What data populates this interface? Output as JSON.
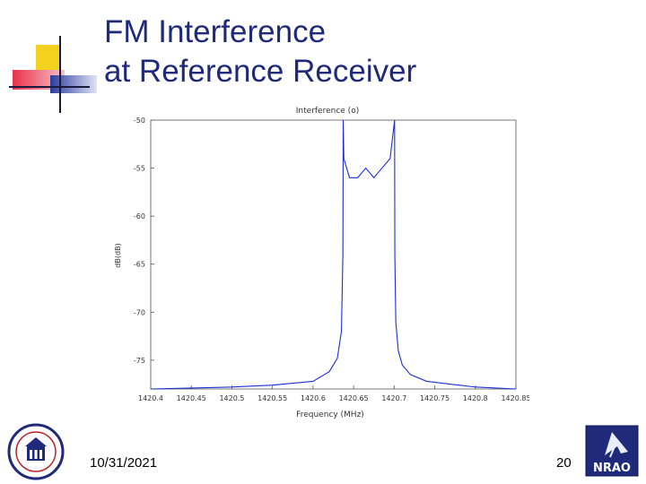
{
  "slide": {
    "title_line1": "FM Interference",
    "title_line2": "at Reference Receiver",
    "date": "10/31/2021",
    "page_number": "20",
    "logo_right_text": "NRAO"
  },
  "colors": {
    "title": "#1f2a7a",
    "series": "#1c2fd6",
    "accent_yellow": "#f3d21f",
    "accent_red": "#e8334a",
    "accent_blue": "#2b3d9c"
  },
  "chart_data": {
    "type": "line",
    "title": "Interference (o)",
    "xlabel": "Frequency (MHz)",
    "ylabel": "dB(dB)",
    "xlim": [
      1420.4,
      1420.85
    ],
    "ylim": [
      -78,
      -50
    ],
    "xticks": [
      "1420.4",
      "1420.45",
      "1420.5",
      "1420.55",
      "1420.6",
      "1420.65",
      "1420.7",
      "1420.75",
      "1420.8",
      "1420.85"
    ],
    "yticks": [
      "-50",
      "-55",
      "-60",
      "-65",
      "-70",
      "-75"
    ],
    "series": [
      {
        "x": [
          1420.4,
          1420.45,
          1420.5,
          1420.55,
          1420.6,
          1420.62,
          1420.63,
          1420.635,
          1420.6368,
          1420.6372,
          1420.638,
          1420.645,
          1420.655,
          1420.665,
          1420.675,
          1420.685,
          1420.695,
          1420.7005,
          1420.7008,
          1420.702,
          1420.705,
          1420.71,
          1420.72,
          1420.74,
          1420.78,
          1420.8,
          1420.85
        ],
        "y": [
          -78,
          -77.9,
          -77.8,
          -77.6,
          -77.2,
          -76.2,
          -74.8,
          -72,
          -64,
          -50,
          -54,
          -56,
          -56,
          -55,
          -56,
          -55,
          -54,
          -50,
          -64,
          -71,
          -74,
          -75.5,
          -76.5,
          -77.2,
          -77.6,
          -77.8,
          -78
        ]
      }
    ]
  }
}
